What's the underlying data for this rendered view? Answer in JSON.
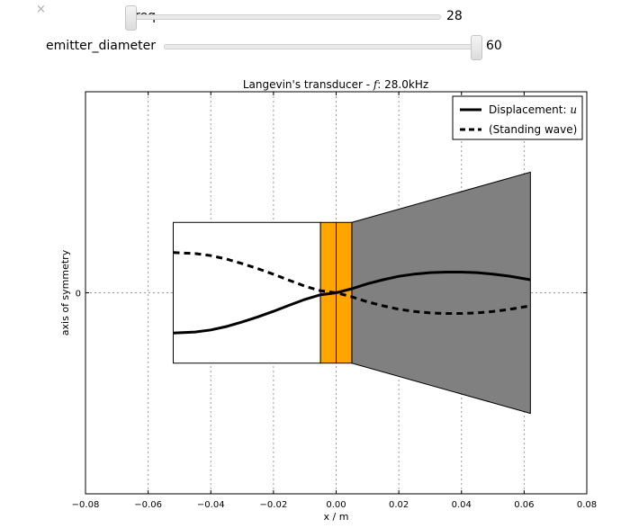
{
  "close_symbol": "×",
  "sliders": [
    {
      "label": "freq",
      "value": "28",
      "fraction": 0.0
    },
    {
      "label": "emitter_diameter",
      "value": "60",
      "fraction": 1.0
    }
  ],
  "chart_data": {
    "type": "line",
    "title": "Langevin's transducer - f: 28.0kHz",
    "title_prefix": "Langevin's transducer - ",
    "title_var": "f",
    "title_suffix": ": 28.0kHz",
    "xlabel": "x / m",
    "ylabel": "axis of symmetry",
    "xlim": [
      -0.08,
      0.08
    ],
    "ylim": [
      -1.0,
      1.0
    ],
    "x_ticks": [
      -0.08,
      -0.06,
      -0.04,
      -0.02,
      0.0,
      0.02,
      0.04,
      0.06,
      0.08
    ],
    "x_tick_labels": [
      "−0.08",
      "−0.06",
      "−0.04",
      "−0.02",
      "0.00",
      "0.02",
      "0.04",
      "0.06",
      "0.08"
    ],
    "y_ticks": [
      0
    ],
    "y_tick_labels": [
      "0"
    ],
    "grid": true,
    "legend_position": "top-right",
    "shapes": {
      "back_mass": {
        "x0": -0.052,
        "x1": -0.005,
        "y0": -0.35,
        "y1": 0.35,
        "fill": "#ffffff"
      },
      "piezo_left": {
        "x0": -0.005,
        "x1": 0.0,
        "y0": -0.35,
        "y1": 0.35,
        "fill": "#ffa500"
      },
      "piezo_right": {
        "x0": 0.0,
        "x1": 0.005,
        "y0": -0.35,
        "y1": 0.35,
        "fill": "#ffa500"
      },
      "horn": {
        "x0": 0.005,
        "x1": 0.062,
        "y0_inner": 0.35,
        "y0_outer": 0.6,
        "fill": "#808080"
      }
    },
    "series": [
      {
        "name": "Displacement: u",
        "name_text": "Displacement: ",
        "name_var": "u",
        "style": "solid",
        "color": "#000000",
        "x": [
          -0.052,
          -0.045,
          -0.04,
          -0.035,
          -0.03,
          -0.025,
          -0.02,
          -0.015,
          -0.01,
          -0.005,
          0.0,
          0.005,
          0.01,
          0.015,
          0.02,
          0.025,
          0.03,
          0.035,
          0.04,
          0.045,
          0.05,
          0.055,
          0.062
        ],
        "y": [
          -0.2,
          -0.195,
          -0.185,
          -0.168,
          -0.145,
          -0.12,
          -0.092,
          -0.062,
          -0.033,
          -0.01,
          0.0,
          0.02,
          0.045,
          0.065,
          0.082,
          0.093,
          0.1,
          0.103,
          0.103,
          0.1,
          0.093,
          0.083,
          0.065
        ]
      },
      {
        "name": "(Standing wave)",
        "name_text": "(Standing wave)",
        "style": "dashed",
        "color": "#000000",
        "x": [
          -0.052,
          -0.045,
          -0.04,
          -0.035,
          -0.03,
          -0.025,
          -0.02,
          -0.015,
          -0.01,
          -0.005,
          0.0,
          0.005,
          0.01,
          0.015,
          0.02,
          0.025,
          0.03,
          0.035,
          0.04,
          0.045,
          0.05,
          0.055,
          0.062
        ],
        "y": [
          0.2,
          0.195,
          0.185,
          0.168,
          0.145,
          0.12,
          0.092,
          0.062,
          0.033,
          0.01,
          0.0,
          -0.02,
          -0.045,
          -0.065,
          -0.082,
          -0.093,
          -0.1,
          -0.103,
          -0.103,
          -0.1,
          -0.093,
          -0.083,
          -0.065
        ]
      }
    ]
  }
}
